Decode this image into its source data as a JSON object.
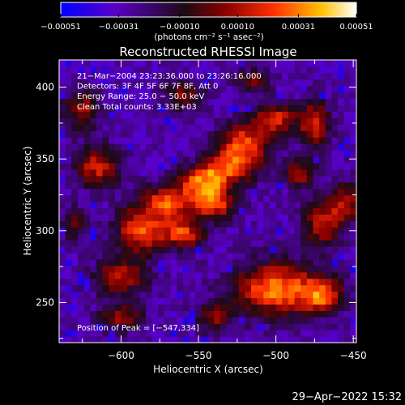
{
  "chart_data": {
    "type": "heatmap",
    "title": "Reconstructed RHESSI Image",
    "xlabel": "Heliocentric X (arcsec)",
    "ylabel": "Heliocentric Y (arcsec)",
    "xlim": [
      -640,
      -448
    ],
    "ylim": [
      222,
      419
    ],
    "x_ticks": [
      -600,
      -550,
      -500,
      -450
    ],
    "x_tick_labels": [
      "−600",
      "−550",
      "−500",
      "−450"
    ],
    "y_ticks": [
      250,
      300,
      350,
      400
    ],
    "y_tick_labels": [
      "250",
      "300",
      "350",
      "400"
    ],
    "colorbar": {
      "range": [
        -0.00051,
        0.00051
      ],
      "ticks": [
        -0.00051,
        -0.00031,
        -0.0001,
        0.0001,
        0.00031,
        0.00051
      ],
      "tick_labels": [
        "−0.00051",
        "−0.00031",
        "−0.00010",
        "0.00010",
        "0.00031",
        "0.00051"
      ],
      "units": "(photons cm⁻² s⁻¹ asec⁻²)",
      "colors": [
        "#0000ff",
        "#5a00c8",
        "#1e0a14",
        "#8b0000",
        "#ff3000",
        "#ffc000",
        "#ffffff"
      ]
    },
    "annotations": [
      "21−Mar−2004 23:23:36.000 to 23:26:16.000",
      "Detectors: 3F 4F 5F 6F 7F 8F, Att 0",
      "Energy Range: 25.0 − 50.0 keV",
      "Clean    Total counts: 3.33E+03"
    ],
    "peak_label": "Position of Peak = [−547,334]",
    "peak": {
      "x": -547,
      "y": 334
    },
    "footer_date": "29−Apr−2022 15:32",
    "grid": false,
    "legend": "none"
  }
}
